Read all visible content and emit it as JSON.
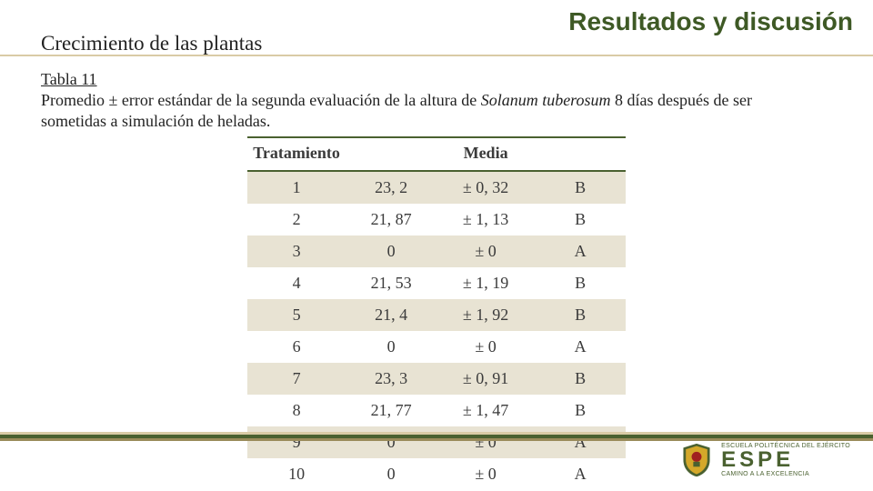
{
  "header": {
    "title": "Resultados y discusión",
    "subtitle": "Crecimiento de las plantas"
  },
  "caption": {
    "tabla_label": "Tabla 11",
    "line1_a": "Promedio ± error estándar de la segunda evaluación de la altura de ",
    "line1_italic": "Solanum tuberosum",
    "line1_b": "  8 días después de ser",
    "line2": "sometidas a simulación de heladas."
  },
  "table": {
    "headers": {
      "tratamiento": "Tratamiento",
      "media": "Media"
    },
    "rows": [
      {
        "t": "1",
        "mean": "23, 2",
        "err": "± 0, 32",
        "grp": "B"
      },
      {
        "t": "2",
        "mean": "21, 87",
        "err": "± 1, 13",
        "grp": "B"
      },
      {
        "t": "3",
        "mean": "0",
        "err": "± 0",
        "grp": "A"
      },
      {
        "t": "4",
        "mean": "21, 53",
        "err": "± 1, 19",
        "grp": "B"
      },
      {
        "t": "5",
        "mean": "21, 4",
        "err": "± 1, 92",
        "grp": "B"
      },
      {
        "t": "6",
        "mean": "0",
        "err": "± 0",
        "grp": "A"
      },
      {
        "t": "7",
        "mean": "23, 3",
        "err": "± 0, 91",
        "grp": "B"
      },
      {
        "t": "8",
        "mean": "21, 77",
        "err": "± 1, 47",
        "grp": "B"
      },
      {
        "t": "9",
        "mean": "0",
        "err": "± 0",
        "grp": "A"
      },
      {
        "t": "10",
        "mean": "0",
        "err": "± 0",
        "grp": "A"
      }
    ],
    "styles": {
      "row_odd_bg": "#e8e3d3",
      "row_even_bg": "#ffffff",
      "border_color": "#4a6130",
      "font_size": 18
    }
  },
  "branding": {
    "acronym": "ESPE",
    "tagline": "CAMINO A LA EXCELENCIA",
    "full_name": "ESCUELA POLITÉCNICA DEL EJÉRCITO",
    "colors": {
      "green": "#4a6130",
      "gold": "#d4a82a",
      "red": "#a02020"
    }
  }
}
